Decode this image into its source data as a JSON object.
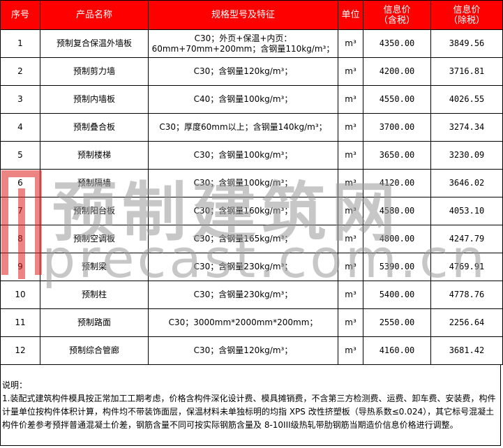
{
  "headers": [
    "序号",
    "产品名称",
    "规格型号及特征",
    "单位",
    "信息价\n（含税）",
    "信息价\n（除税）"
  ],
  "header_parts": {
    "tax_in_1": "信息价",
    "tax_in_2": "（含税）",
    "tax_ex_1": "信息价",
    "tax_ex_2": "（除税）"
  },
  "rows": [
    {
      "no": "1",
      "name": "预制复合保温外墙板",
      "spec": "C30；外页+保温+内页：60mm+70mm+200mm；含钢量110kg/m³；",
      "unit": "m³",
      "price_tax": "4350.00",
      "price_notax": "3849.56"
    },
    {
      "no": "2",
      "name": "预制剪力墙",
      "spec": "C30；含钢量120kg/m³；",
      "unit": "m³",
      "price_tax": "4200.00",
      "price_notax": "3716.81"
    },
    {
      "no": "3",
      "name": "预制内墙板",
      "spec": "C40；含钢量100kg/m³；",
      "unit": "m³",
      "price_tax": "4550.00",
      "price_notax": "4026.55"
    },
    {
      "no": "4",
      "name": "预制叠合板",
      "spec": "C30；厚度60mm以上；含钢量140kg/m³；",
      "unit": "m³",
      "price_tax": "3700.00",
      "price_notax": "3274.34"
    },
    {
      "no": "5",
      "name": "预制楼梯",
      "spec": "C30；含钢量100kg/m³；",
      "unit": "m³",
      "price_tax": "3650.00",
      "price_notax": "3230.09"
    },
    {
      "no": "6",
      "name": "预制隔墙",
      "spec": "C30；含钢量100kg/m³；",
      "unit": "m³",
      "price_tax": "4120.00",
      "price_notax": "3646.02"
    },
    {
      "no": "7",
      "name": "预制阳台板",
      "spec": "C30；含钢量160kg/m³；",
      "unit": "m³",
      "price_tax": "4580.00",
      "price_notax": "4053.10"
    },
    {
      "no": "8",
      "name": "预制空调板",
      "spec": "C30；含钢量165kg/m³；",
      "unit": "m³",
      "price_tax": "4800.00",
      "price_notax": "4247.79"
    },
    {
      "no": "9",
      "name": "预制梁",
      "spec": "C30；含钢量230kg/m³；",
      "unit": "m³",
      "price_tax": "5390.00",
      "price_notax": "4769.91"
    },
    {
      "no": "10",
      "name": "预制柱",
      "spec": "C30；含钢量230kg/m³；",
      "unit": "m³",
      "price_tax": "5400.00",
      "price_notax": "4778.76"
    },
    {
      "no": "11",
      "name": "预制路面",
      "spec": "C30；3000mm*2000mm*200mm；",
      "unit": "m³",
      "price_tax": "2550.00",
      "price_notax": "2256.64"
    },
    {
      "no": "12",
      "name": "预制综合管廊",
      "spec": "C30；含钢量120kg/m³；",
      "unit": "m³",
      "price_tax": "4160.00",
      "price_notax": "3681.42"
    }
  ],
  "note": {
    "title": "说明：",
    "text": "1.装配式建筑构件模具按正常加工工期考虑，价格含构件深化设计费、模具摊销费，不含第三方检测费、运费、卸车费、安装费，构件计量单位按构件体积计算，构件均不带装饰面层，保温材料未单独标明的均指 XPS 改性挤塑板（导热系数≤0.024），其它标号混凝土构件价差参考预拌普通混凝土价差，钢筋含量不同可按实际钢筋含量及 8-10III级热轧带肋钢筋当期造价信息价格进行调整。"
  },
  "watermark": {
    "cn": "预制建筑网",
    "en": "precast.com.cn"
  },
  "colors": {
    "header_bg": "#ff0000",
    "header_text": "#ffffff"
  }
}
